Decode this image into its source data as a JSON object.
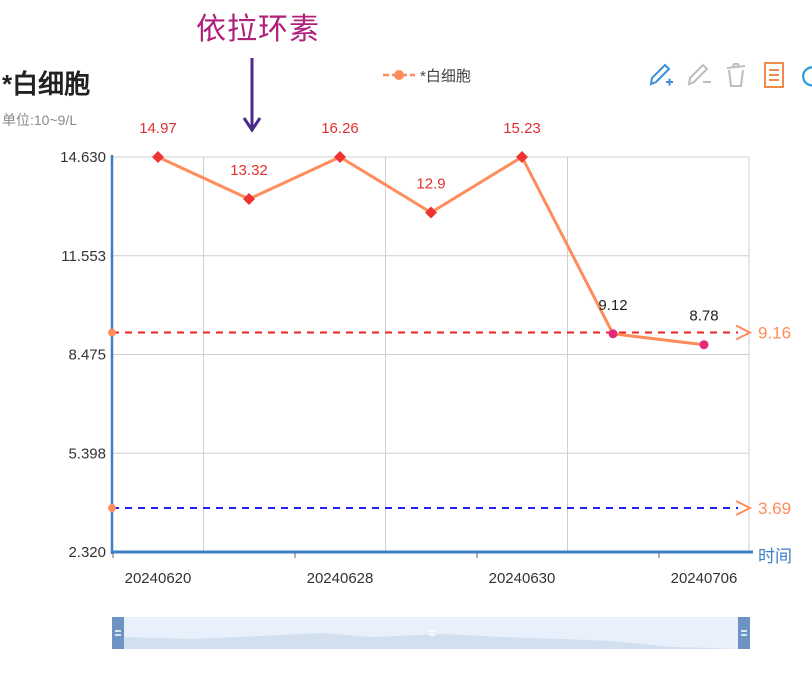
{
  "annotation": {
    "text": "依拉环素",
    "arrow_color": "#4b2a8a",
    "text_color": "#b0207a"
  },
  "title": "*白细胞",
  "unit": "单位:10~9/L",
  "legend": {
    "label": "*白细胞",
    "color": "#ff8c5a"
  },
  "toolbar": [
    "pencil-add-icon",
    "pencil-remove-icon",
    "trash-icon",
    "document-icon",
    "refresh-icon"
  ],
  "chart_data": {
    "type": "line",
    "x": [
      "20240620",
      "",
      "20240628",
      "",
      "20240630",
      "",
      "20240706"
    ],
    "x_tick_labels": [
      "20240620",
      "20240628",
      "20240630",
      "20240706"
    ],
    "series": [
      {
        "name": "*白细胞",
        "values": [
          14.97,
          13.32,
          16.26,
          12.9,
          15.23,
          9.12,
          8.78
        ],
        "color": "#ff8c5a"
      }
    ],
    "data_labels": [
      "14.97",
      "13.32",
      "16.26",
      "12.9",
      "15.23",
      "9.12",
      "8.78"
    ],
    "xlabel": "时间",
    "ylabel": "",
    "ylim": [
      2.32,
      14.63
    ],
    "y_ticks": [
      "14.630",
      "11.553",
      "8.475",
      "5.398",
      "2.320"
    ],
    "reference_lines": [
      {
        "value": 9.16,
        "label": "9.16",
        "color": "#ee2222",
        "label_color": "#ff8c5a"
      },
      {
        "value": 3.69,
        "label": "3.69",
        "color": "#2222ee",
        "label_color": "#ff8c5a"
      }
    ],
    "high_color": "#ee3333",
    "normal_color": "#e6287a",
    "grid": true
  }
}
